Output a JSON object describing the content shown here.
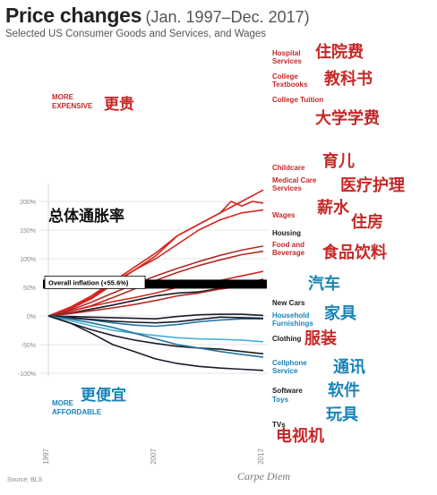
{
  "title": "Price changes",
  "title_range": "(Jan. 1997–Dec. 2017)",
  "subtitle": "Selected US Consumer Goods and Services, and Wages",
  "source": "Source: BLS",
  "brand": "Carpe Diem",
  "colors": {
    "red_dark": "#d3241f",
    "red_mid": "#b52a22",
    "dark": "#1b1b2b",
    "blue_mid": "#23749e",
    "blue_light": "#45b2d8",
    "inflation": "#000000",
    "grid": "#dddddd",
    "red_label": "#c62828",
    "blue_label": "#1a84b8"
  },
  "annotations": {
    "more_expensive": [
      "MORE",
      "EXPENSIVE"
    ],
    "more_affordable": [
      "MORE",
      "AFFORDABLE"
    ],
    "overall_inflation": "Overall inflation (+55.6%)",
    "cn_more_expensive": "更贵",
    "cn_more_affordable": "更便宜",
    "cn_inflation": "总体通胀率"
  },
  "chart_data": {
    "type": "line",
    "title": "Price changes",
    "subtitle": "Selected US Consumer Goods and Services, and Wages",
    "x_range": [
      1997,
      2017
    ],
    "x_ticks": [
      "1997",
      "2007",
      "2017"
    ],
    "ylim": [
      -100,
      230
    ],
    "y_ticks": [
      200,
      150,
      100,
      50,
      0,
      -50,
      -100
    ],
    "y_tick_labels": [
      "200%",
      "150%",
      "100%",
      "50%",
      "0%",
      "-50%",
      "-100%"
    ],
    "overall_inflation": 55.6,
    "grid": true,
    "series": [
      {
        "name": "Hospital Services",
        "label": [
          "Hospital",
          "Services"
        ],
        "cn": "住院费",
        "color": "red_dark",
        "points": [
          [
            1997,
            0
          ],
          [
            1999,
            15
          ],
          [
            2001,
            35
          ],
          [
            2003,
            60
          ],
          [
            2005,
            85
          ],
          [
            2007,
            110
          ],
          [
            2009,
            140
          ],
          [
            2011,
            160
          ],
          [
            2013,
            180
          ],
          [
            2015,
            200
          ],
          [
            2017,
            220
          ]
        ]
      },
      {
        "name": "College Textbooks",
        "label": [
          "College",
          "Textbooks"
        ],
        "cn": "教科书",
        "color": "red_dark",
        "points": [
          [
            1997,
            0
          ],
          [
            1999,
            12
          ],
          [
            2001,
            30
          ],
          [
            2003,
            55
          ],
          [
            2005,
            80
          ],
          [
            2007,
            105
          ],
          [
            2009,
            140
          ],
          [
            2011,
            160
          ],
          [
            2013,
            180
          ],
          [
            2014,
            200
          ],
          [
            2015,
            192
          ],
          [
            2016,
            200
          ],
          [
            2017,
            197
          ]
        ]
      },
      {
        "name": "College Tuition",
        "label": [
          "College Tuition"
        ],
        "cn": "大学学费",
        "color": "red_dark",
        "points": [
          [
            1997,
            0
          ],
          [
            1999,
            13
          ],
          [
            2001,
            32
          ],
          [
            2003,
            58
          ],
          [
            2005,
            80
          ],
          [
            2007,
            100
          ],
          [
            2009,
            125
          ],
          [
            2011,
            150
          ],
          [
            2013,
            168
          ],
          [
            2015,
            180
          ],
          [
            2017,
            185
          ]
        ]
      },
      {
        "name": "Childcare",
        "label": [
          "Childcare"
        ],
        "cn": "育儿",
        "color": "red_mid",
        "points": [
          [
            1997,
            0
          ],
          [
            1999,
            10
          ],
          [
            2001,
            24
          ],
          [
            2003,
            40
          ],
          [
            2005,
            55
          ],
          [
            2007,
            70
          ],
          [
            2009,
            83
          ],
          [
            2011,
            95
          ],
          [
            2013,
            106
          ],
          [
            2015,
            115
          ],
          [
            2017,
            122
          ]
        ]
      },
      {
        "name": "Medical Care Services",
        "label": [
          "Medical Care",
          "Services"
        ],
        "cn": "医疗护理",
        "color": "red_mid",
        "points": [
          [
            1997,
            0
          ],
          [
            1999,
            8
          ],
          [
            2001,
            18
          ],
          [
            2003,
            32
          ],
          [
            2005,
            47
          ],
          [
            2007,
            62
          ],
          [
            2009,
            76
          ],
          [
            2011,
            88
          ],
          [
            2013,
            98
          ],
          [
            2015,
            107
          ],
          [
            2017,
            113
          ]
        ]
      },
      {
        "name": "Wages",
        "label": [
          "Wages"
        ],
        "cn": "薪水",
        "color": "red_dark",
        "points": [
          [
            1997,
            0
          ],
          [
            1999,
            8
          ],
          [
            2001,
            17
          ],
          [
            2003,
            25
          ],
          [
            2005,
            32
          ],
          [
            2007,
            40
          ],
          [
            2009,
            50
          ],
          [
            2011,
            55
          ],
          [
            2013,
            62
          ],
          [
            2015,
            70
          ],
          [
            2017,
            78
          ]
        ]
      },
      {
        "name": "Housing",
        "label": [
          "Housing"
        ],
        "cn": "住房",
        "color": "dark",
        "points": [
          [
            1997,
            0
          ],
          [
            1999,
            5
          ],
          [
            2001,
            12
          ],
          [
            2003,
            19
          ],
          [
            2005,
            27
          ],
          [
            2007,
            35
          ],
          [
            2009,
            40
          ],
          [
            2011,
            42
          ],
          [
            2013,
            48
          ],
          [
            2015,
            55
          ],
          [
            2017,
            64
          ]
        ]
      },
      {
        "name": "Food and Beverage",
        "label": [
          "Food and",
          "Beverage"
        ],
        "cn": "食品饮料",
        "color": "red_mid",
        "points": [
          [
            1997,
            0
          ],
          [
            1999,
            4
          ],
          [
            2001,
            9
          ],
          [
            2003,
            14
          ],
          [
            2005,
            20
          ],
          [
            2007,
            27
          ],
          [
            2009,
            35
          ],
          [
            2011,
            40
          ],
          [
            2013,
            47
          ],
          [
            2015,
            52
          ],
          [
            2017,
            55
          ]
        ]
      },
      {
        "name": "New Cars",
        "label": [
          "New Cars"
        ],
        "cn": "汽车",
        "color": "dark",
        "points": [
          [
            1997,
            0
          ],
          [
            1999,
            -1
          ],
          [
            2001,
            -2
          ],
          [
            2003,
            -3
          ],
          [
            2005,
            -4
          ],
          [
            2007,
            -5
          ],
          [
            2009,
            -1
          ],
          [
            2011,
            2
          ],
          [
            2013,
            3
          ],
          [
            2015,
            3
          ],
          [
            2017,
            1
          ]
        ]
      },
      {
        "name": "Household Furnishings",
        "label": [
          "Household",
          "Furnishings"
        ],
        "cn": "家具",
        "color": "blue_mid",
        "points": [
          [
            1997,
            0
          ],
          [
            1999,
            -3
          ],
          [
            2001,
            -7
          ],
          [
            2003,
            -12
          ],
          [
            2005,
            -16
          ],
          [
            2007,
            -18
          ],
          [
            2009,
            -15
          ],
          [
            2011,
            -10
          ],
          [
            2013,
            -7
          ],
          [
            2015,
            -5
          ],
          [
            2017,
            -5
          ]
        ]
      },
      {
        "name": "Clothing",
        "label": [
          "Clothing"
        ],
        "cn": "服装",
        "color": "dark",
        "points": [
          [
            1997,
            0
          ],
          [
            1999,
            -3
          ],
          [
            2001,
            -6
          ],
          [
            2003,
            -9
          ],
          [
            2005,
            -11
          ],
          [
            2007,
            -12
          ],
          [
            2009,
            -10
          ],
          [
            2011,
            -6
          ],
          [
            2013,
            -2
          ],
          [
            2015,
            -3
          ],
          [
            2017,
            -4
          ]
        ]
      },
      {
        "name": "Cellphone Service",
        "label": [
          "Cellphone",
          "Service"
        ],
        "cn": "通讯",
        "color": "blue_light",
        "points": [
          [
            1997,
            0
          ],
          [
            1999,
            -8
          ],
          [
            2001,
            -17
          ],
          [
            2003,
            -25
          ],
          [
            2005,
            -30
          ],
          [
            2007,
            -34
          ],
          [
            2009,
            -38
          ],
          [
            2011,
            -40
          ],
          [
            2013,
            -41
          ],
          [
            2015,
            -42
          ],
          [
            2017,
            -45
          ]
        ]
      },
      {
        "name": "Software",
        "label": [
          "Software"
        ],
        "cn": "软件",
        "color": "dark",
        "points": [
          [
            1997,
            0
          ],
          [
            1999,
            -12
          ],
          [
            2001,
            -24
          ],
          [
            2003,
            -34
          ],
          [
            2005,
            -42
          ],
          [
            2007,
            -48
          ],
          [
            2009,
            -53
          ],
          [
            2011,
            -56
          ],
          [
            2013,
            -58
          ],
          [
            2015,
            -62
          ],
          [
            2017,
            -66
          ]
        ]
      },
      {
        "name": "Toys",
        "label": [
          "Toys"
        ],
        "cn": "玩具",
        "color": "blue_mid",
        "points": [
          [
            1997,
            0
          ],
          [
            1999,
            -5
          ],
          [
            2001,
            -12
          ],
          [
            2003,
            -20
          ],
          [
            2005,
            -30
          ],
          [
            2007,
            -40
          ],
          [
            2009,
            -50
          ],
          [
            2011,
            -56
          ],
          [
            2013,
            -62
          ],
          [
            2015,
            -67
          ],
          [
            2017,
            -72
          ]
        ]
      },
      {
        "name": "TVs",
        "label": [
          "TVs"
        ],
        "cn": "电视机",
        "color": "dark",
        "points": [
          [
            1997,
            0
          ],
          [
            1999,
            -12
          ],
          [
            2001,
            -30
          ],
          [
            2003,
            -50
          ],
          [
            2005,
            -62
          ],
          [
            2007,
            -75
          ],
          [
            2009,
            -83
          ],
          [
            2011,
            -88
          ],
          [
            2013,
            -91
          ],
          [
            2015,
            -93
          ],
          [
            2017,
            -95
          ]
        ]
      }
    ]
  }
}
